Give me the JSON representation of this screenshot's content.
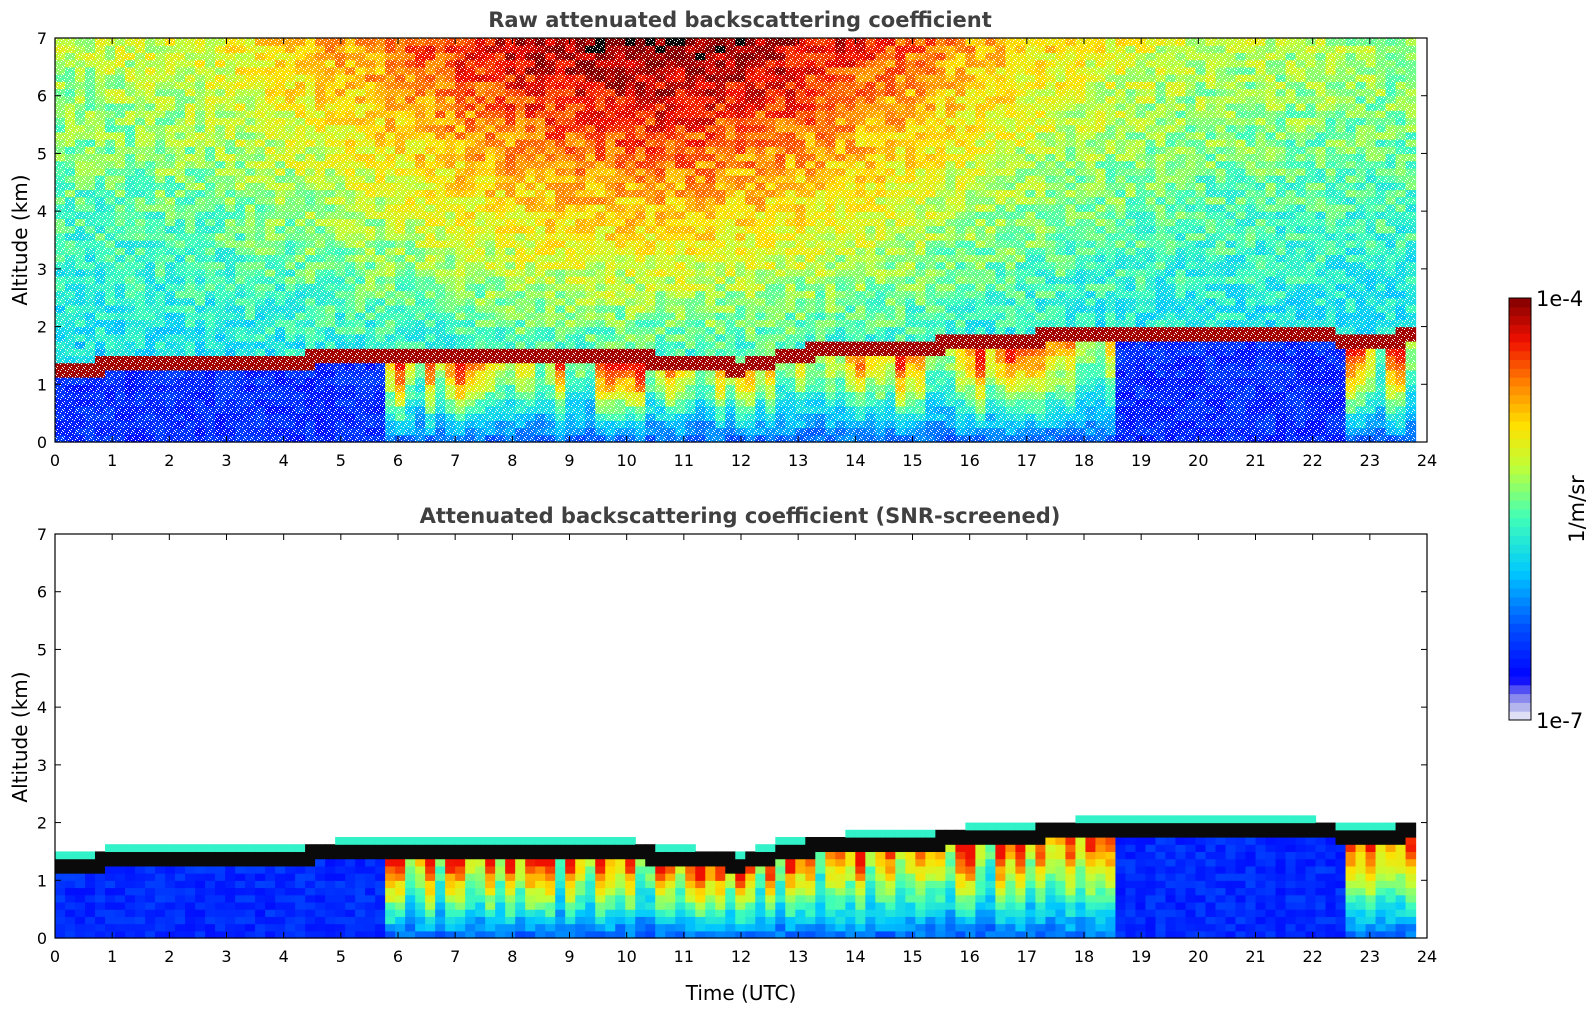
{
  "chart_data": [
    {
      "type": "heatmap",
      "title": "Raw attenuated backscattering coefficient",
      "xlabel": "",
      "ylabel": "Altitude (km)",
      "xlim": [
        0,
        24
      ],
      "ylim": [
        0,
        7
      ],
      "xticks": [
        "0",
        "1",
        "2",
        "3",
        "4",
        "5",
        "6",
        "7",
        "8",
        "9",
        "10",
        "11",
        "12",
        "13",
        "14",
        "15",
        "16",
        "17",
        "18",
        "19",
        "20",
        "21",
        "22",
        "23",
        "24"
      ],
      "yticks": [
        "0",
        "1",
        "2",
        "3",
        "4",
        "5",
        "6",
        "7"
      ],
      "screened": false,
      "data_end_hour": 23.8,
      "cloud_layer": {
        "time_utc": [
          0,
          0.5,
          1,
          1.5,
          2,
          3,
          4,
          5,
          6,
          7,
          8,
          9,
          10,
          11,
          12,
          13,
          14,
          15,
          16,
          17,
          18,
          19,
          20,
          21,
          22,
          23,
          23.8
        ],
        "base_km": [
          1.3,
          1.25,
          1.35,
          1.37,
          1.4,
          1.38,
          1.4,
          1.48,
          1.5,
          1.5,
          1.55,
          1.55,
          1.5,
          1.35,
          1.3,
          1.55,
          1.6,
          1.65,
          1.72,
          1.8,
          1.85,
          1.85,
          1.85,
          1.85,
          1.85,
          1.75,
          1.85
        ]
      }
    },
    {
      "type": "heatmap",
      "title": "Attenuated backscattering coefficient (SNR-screened)",
      "xlabel": "Time (UTC)",
      "ylabel": "Altitude (km)",
      "xlim": [
        0,
        24
      ],
      "ylim": [
        0,
        7
      ],
      "xticks": [
        "0",
        "1",
        "2",
        "3",
        "4",
        "5",
        "6",
        "7",
        "8",
        "9",
        "10",
        "11",
        "12",
        "13",
        "14",
        "15",
        "16",
        "17",
        "18",
        "19",
        "20",
        "21",
        "22",
        "23",
        "24"
      ],
      "yticks": [
        "0",
        "1",
        "2",
        "3",
        "4",
        "5",
        "6",
        "7"
      ],
      "screened": true,
      "data_end_hour": 23.8,
      "cloud_layer": {
        "time_utc": [
          0,
          0.5,
          1,
          1.5,
          2,
          3,
          4,
          5,
          6,
          7,
          8,
          9,
          10,
          11,
          12,
          13,
          14,
          15,
          16,
          17,
          18,
          19,
          20,
          21,
          22,
          23,
          23.8
        ],
        "base_km": [
          1.3,
          1.25,
          1.35,
          1.37,
          1.4,
          1.38,
          1.4,
          1.48,
          1.5,
          1.5,
          1.55,
          1.55,
          1.5,
          1.35,
          1.3,
          1.55,
          1.6,
          1.65,
          1.72,
          1.8,
          1.85,
          1.85,
          1.85,
          1.85,
          1.85,
          1.75,
          1.85
        ]
      }
    }
  ],
  "colorbar": {
    "label": "1/m/sr",
    "max_label": "1e-4",
    "min_label": "1e-7",
    "scale": "log",
    "colormap": "jet",
    "range": [
      1e-07,
      0.0001
    ]
  }
}
